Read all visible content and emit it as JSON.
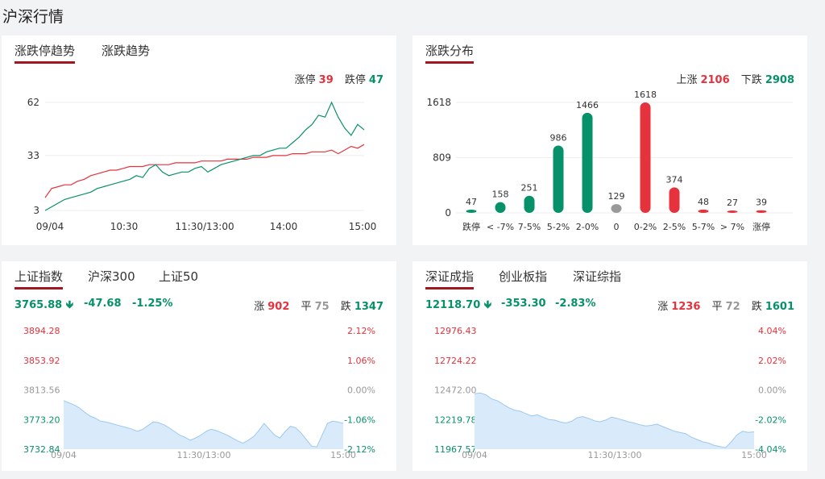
{
  "page_title": "沪深行情",
  "limit_card": {
    "tabs": [
      "涨跌停趋势",
      "涨跌趋势"
    ],
    "up_label": "涨停",
    "up_value": "39",
    "down_label": "跌停",
    "down_value": "47"
  },
  "dist_card": {
    "tabs": [
      "涨跌分布"
    ],
    "up_label": "上涨",
    "up_value": "2106",
    "down_label": "下跌",
    "down_value": "2908"
  },
  "sh_card": {
    "tabs": [
      "上证指数",
      "沪深300",
      "上证50"
    ],
    "price": "3765.88",
    "change": "-47.68",
    "change_pct": "-1.25%",
    "up_label": "涨",
    "up_value": "902",
    "flat_label": "平",
    "flat_value": "75",
    "down_label": "跌",
    "down_value": "1347"
  },
  "sz_card": {
    "tabs": [
      "深证成指",
      "创业板指",
      "深证综指"
    ],
    "price": "12118.70",
    "change": "-353.30",
    "change_pct": "-2.83%",
    "up_label": "涨",
    "up_value": "1236",
    "flat_label": "平",
    "flat_value": "72",
    "down_label": "跌",
    "down_value": "1601"
  },
  "colors": {
    "up": "#e5323d",
    "down": "#07916b",
    "flat": "#999999",
    "accent": "#a3151f",
    "area": "#d9ebfb",
    "area_line": "#9cc8ef"
  },
  "chart_data": [
    {
      "type": "line",
      "name": "涨跌停趋势",
      "x_ticks": [
        "09/04",
        "10:30",
        "11:30/13:00",
        "14:00",
        "15:00"
      ],
      "y_ticks": [
        3,
        33,
        62
      ],
      "ylim": [
        3,
        62
      ],
      "series": [
        {
          "name": "涨停",
          "color": "#e5323d",
          "values": [
            10,
            15,
            16,
            17,
            17,
            19,
            20,
            22,
            23,
            24,
            25,
            25,
            26,
            27,
            27,
            27,
            28,
            28,
            28,
            28,
            29,
            29,
            29,
            29,
            30,
            30,
            30,
            30,
            31,
            31,
            31,
            31,
            32,
            32,
            32,
            33,
            33,
            33,
            34,
            34,
            34,
            35,
            35,
            35,
            36,
            34,
            36,
            38,
            37,
            39
          ]
        },
        {
          "name": "跌停",
          "color": "#07916b",
          "values": [
            3,
            5,
            7,
            9,
            10,
            11,
            12,
            13,
            15,
            16,
            17,
            18,
            19,
            20,
            22,
            21,
            26,
            28,
            24,
            22,
            23,
            24,
            24,
            26,
            27,
            24,
            26,
            28,
            29,
            30,
            31,
            32,
            33,
            33,
            35,
            36,
            37,
            37,
            40,
            43,
            47,
            50,
            55,
            54,
            62,
            54,
            48,
            44,
            50,
            47
          ]
        }
      ]
    },
    {
      "type": "bar",
      "name": "涨跌分布",
      "categories": [
        "跌停",
        "< -7%",
        "7-5%",
        "5-2%",
        "2-0%",
        "0",
        "0-2%",
        "2-5%",
        "5-7%",
        "> 7%",
        "涨停"
      ],
      "values": [
        47,
        158,
        251,
        986,
        1466,
        129,
        1618,
        374,
        48,
        27,
        39
      ],
      "bar_colors": [
        "#07916b",
        "#07916b",
        "#07916b",
        "#07916b",
        "#07916b",
        "#999999",
        "#e5323d",
        "#e5323d",
        "#e5323d",
        "#e5323d",
        "#e5323d"
      ],
      "y_ticks": [
        0,
        809,
        1618
      ],
      "ylim": [
        0,
        1618
      ]
    },
    {
      "type": "area",
      "name": "上证指数",
      "x_ticks": [
        "09/04",
        "11:30/13:00",
        "15:00"
      ],
      "y_ticks_left": [
        "3894.28",
        "3853.92",
        "3813.56",
        "3773.20",
        "3732.84"
      ],
      "y_ticks_right": [
        "2.12%",
        "1.06%",
        "0.00%",
        "-1.06%",
        "-2.12%"
      ],
      "ylim": [
        3732.84,
        3894.28
      ],
      "values": [
        3799,
        3796,
        3793,
        3789,
        3783,
        3778,
        3775,
        3771,
        3770,
        3768,
        3766,
        3764,
        3762,
        3760,
        3757,
        3760,
        3765,
        3770,
        3769,
        3766,
        3762,
        3757,
        3752,
        3749,
        3745,
        3748,
        3752,
        3757,
        3760,
        3758,
        3755,
        3752,
        3748,
        3744,
        3741,
        3745,
        3750,
        3758,
        3768,
        3760,
        3752,
        3748,
        3757,
        3764,
        3762,
        3755,
        3746,
        3737,
        3736,
        3752,
        3768,
        3771,
        3770,
        3768
      ]
    },
    {
      "type": "area",
      "name": "深证成指",
      "x_ticks": [
        "09/04",
        "11:30/13:00",
        "15:00"
      ],
      "y_ticks_left": [
        "12976.43",
        "12724.22",
        "12472.00",
        "12219.78",
        "11967.57"
      ],
      "y_ticks_right": [
        "4.04%",
        "2.02%",
        "0.00%",
        "-2.02%",
        "-4.04%"
      ],
      "ylim": [
        11967.57,
        12976.43
      ],
      "values": [
        12440,
        12445,
        12430,
        12395,
        12380,
        12350,
        12320,
        12300,
        12290,
        12270,
        12250,
        12260,
        12240,
        12220,
        12215,
        12200,
        12190,
        12205,
        12235,
        12245,
        12230,
        12210,
        12200,
        12215,
        12240,
        12230,
        12215,
        12200,
        12190,
        12175,
        12165,
        12170,
        12180,
        12160,
        12140,
        12120,
        12110,
        12100,
        12070,
        12050,
        12030,
        12020,
        12000,
        11990,
        11980,
        12030,
        12090,
        12120,
        12110,
        12115
      ]
    }
  ]
}
